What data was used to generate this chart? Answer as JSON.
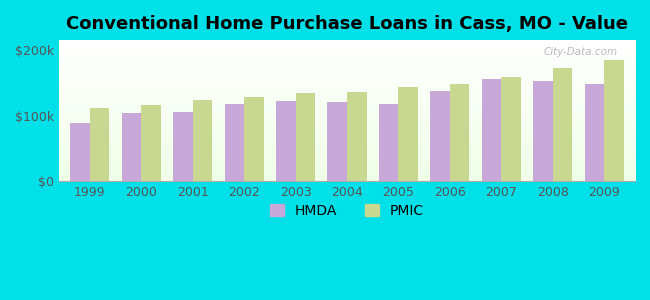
{
  "title": "Conventional Home Purchase Loans in Cass, MO - Value",
  "years": [
    1999,
    2000,
    2001,
    2002,
    2003,
    2004,
    2005,
    2006,
    2007,
    2008,
    2009
  ],
  "hmda": [
    88000,
    104000,
    106000,
    118000,
    122000,
    120000,
    118000,
    138000,
    155000,
    153000,
    148000
  ],
  "pmic": [
    112000,
    116000,
    123000,
    128000,
    135000,
    136000,
    143000,
    148000,
    158000,
    172000,
    185000
  ],
  "hmda_color": "#c8a8d8",
  "pmic_color": "#c8d890",
  "background_color": "#00e0e8",
  "ytick_vals": [
    0,
    100000,
    200000
  ],
  "ytick_labels": [
    "$0",
    "$100k",
    "$200k"
  ],
  "ylim": [
    0,
    215000
  ],
  "title_fontsize": 13,
  "tick_fontsize": 9,
  "legend_labels": [
    "HMDA",
    "PMIC"
  ],
  "bar_width": 0.38,
  "figsize": [
    6.5,
    3.0
  ],
  "dpi": 100
}
